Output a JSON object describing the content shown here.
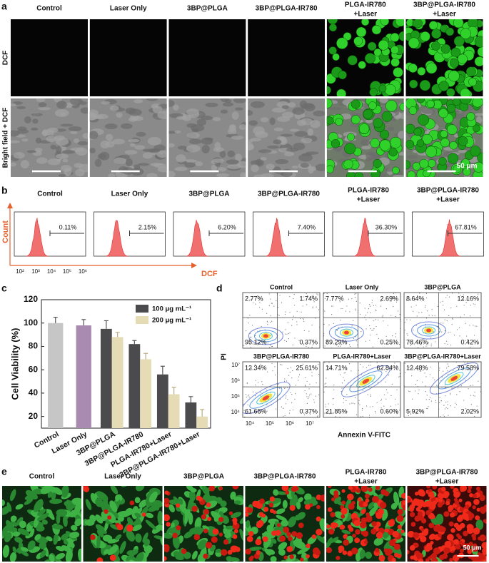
{
  "panel_labels": [
    "a",
    "b",
    "c",
    "d",
    "e"
  ],
  "panel_a": {
    "columns": [
      [
        "Control"
      ],
      [
        "Laser Only"
      ],
      [
        "3BP@PLGA"
      ],
      [
        "3BP@PLGA-IR780"
      ],
      [
        "PLGA-IR780",
        "+Laser"
      ],
      [
        "3BP@PLGA-IR780",
        "+Laser"
      ]
    ],
    "rows": [
      "DCF",
      "Bright field + DCF"
    ],
    "scale_bar": "50 μm"
  },
  "panel_b": {
    "columns": [
      [
        "Control"
      ],
      [
        "Laser Only"
      ],
      [
        "3BP@PLGA"
      ],
      [
        "3BP@PLGA-IR780"
      ],
      [
        "PLGA-IR780",
        "+Laser"
      ],
      [
        "3BP@PLGA-IR780",
        "+Laser"
      ]
    ],
    "percentages": [
      "0.11%",
      "2.15%",
      "6.20%",
      "7.40%",
      "36.30%",
      "67.81%"
    ],
    "y_label": "Count",
    "x_label": "DCF",
    "x_ticks": [
      "10²",
      "10³",
      "10⁴",
      "10⁵",
      "10⁶"
    ]
  },
  "chart_data": {
    "type": "bar",
    "y_label": "Cell Viability (%)",
    "categories": [
      "Control",
      "Laser Only",
      "3BP@PLGA",
      "3BP@PLGA-IR780",
      "PLGA-IR780+Laser",
      "3BP@PLGA-IR780+Laser"
    ],
    "values": [
      100,
      98,
      null,
      null,
      null,
      null
    ],
    "errors": [
      5,
      5,
      null,
      null,
      null,
      null
    ],
    "colors": [
      "#c6c6c6",
      "#a98bb1"
    ],
    "series": [
      {
        "name": "100 μg mL⁻¹",
        "color": "#4b4b4d",
        "values": [
          null,
          null,
          95,
          82,
          56,
          32
        ],
        "errors": [
          null,
          null,
          7,
          3,
          7,
          5
        ]
      },
      {
        "name": "200 μg mL⁻¹",
        "color": "#e5dcb5",
        "values": [
          null,
          null,
          88,
          69,
          39,
          20
        ],
        "errors": [
          null,
          null,
          4,
          5,
          6,
          6
        ]
      }
    ],
    "ylim": [
      10,
      120
    ],
    "yticks": [
      20,
      40,
      60,
      80,
      100,
      120
    ]
  },
  "panel_d": {
    "plots": [
      {
        "title": "Control",
        "quadrants": [
          "2.77%",
          "1.74%",
          "95.12%",
          "0.37%"
        ]
      },
      {
        "title": "Laser Only",
        "quadrants": [
          "7.77%",
          "2.69%",
          "89.29%",
          "0.25%"
        ]
      },
      {
        "title": "3BP@PLGA",
        "quadrants": [
          "8.64%",
          "12.16%",
          "78.46%",
          "0.42%"
        ]
      },
      {
        "title": "3BP@PLGA-IR780",
        "quadrants": [
          "12.34%",
          "25.61%",
          "61.68%",
          "0.37%"
        ]
      },
      {
        "title": "PLGA-IR780+Laser",
        "quadrants": [
          "14.71%",
          "62.84%",
          "21.85%",
          "0.60%"
        ]
      },
      {
        "title": "3BP@PLGA-IR780+Laser",
        "quadrants": [
          "12.48%",
          "79.58%",
          "5.92%",
          "2.02%"
        ]
      }
    ],
    "x_label": "Annexin V-FITC",
    "y_label": "PI",
    "x_ticks": [
      "10⁴",
      "10⁵",
      "10⁶",
      "10⁷"
    ],
    "y_ticks": [
      "10⁴",
      "10⁵",
      "10⁶",
      "10⁷"
    ]
  },
  "panel_e": {
    "columns": [
      [
        "Control"
      ],
      [
        "Laser Only"
      ],
      [
        "3BP@PLGA"
      ],
      [
        "3BP@PLGA-IR780"
      ],
      [
        "PLGA-IR780",
        "+Laser"
      ],
      [
        "3BP@PLGA-IR780",
        "+Laser"
      ]
    ],
    "scale_bar": "50 μm"
  }
}
